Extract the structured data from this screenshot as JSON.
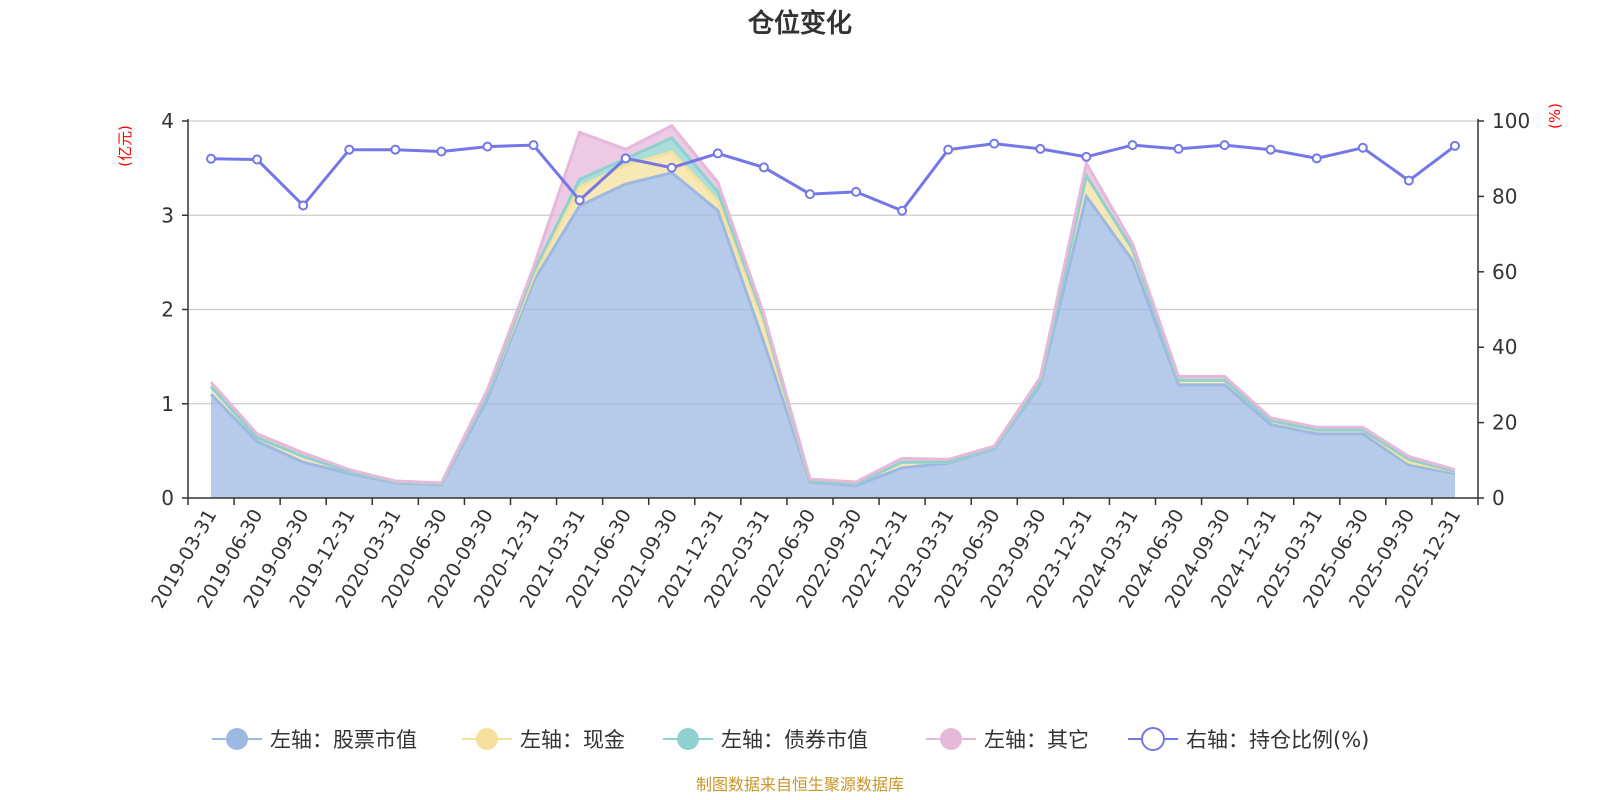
{
  "chart_data": {
    "type": "area",
    "title": "仓位变化",
    "left_axis_unit": "(亿元)",
    "right_axis_unit": "(%)",
    "left_axis": {
      "min": 0,
      "max": 4,
      "ticks": [
        "0",
        "1",
        "2",
        "3",
        "4"
      ]
    },
    "right_axis": {
      "min": 0,
      "max": 100,
      "ticks": [
        "0",
        "20",
        "40",
        "60",
        "80",
        "100"
      ]
    },
    "categories": [
      "2019-03-31",
      "2019-06-30",
      "2019-09-30",
      "2019-12-31",
      "2020-03-31",
      "2020-06-30",
      "2020-09-30",
      "2020-12-31",
      "2021-03-31",
      "2021-06-30",
      "2021-09-30",
      "2021-12-31",
      "2022-03-31",
      "2022-06-30",
      "2022-09-30",
      "2022-12-31",
      "2023-03-31",
      "2023-06-30",
      "2023-09-30",
      "2023-12-31",
      "2024-03-31",
      "2024-06-30",
      "2024-09-30",
      "2024-12-31",
      "2025-03-31",
      "2025-06-30",
      "2025-09-30",
      "2025-12-31"
    ],
    "series": [
      {
        "name": "左轴：股票市值",
        "axis": "left",
        "color": "#9db8e2",
        "values": [
          1.1,
          0.6,
          0.38,
          0.26,
          0.16,
          0.14,
          1.05,
          2.3,
          3.1,
          3.33,
          3.45,
          3.05,
          1.65,
          0.17,
          0.13,
          0.32,
          0.37,
          0.52,
          1.2,
          3.2,
          2.52,
          1.2,
          1.2,
          0.78,
          0.68,
          0.68,
          0.35,
          0.26
        ]
      },
      {
        "name": "左轴：现金",
        "axis": "left",
        "color": "#f5e09c",
        "values": [
          0.08,
          0.04,
          0.06,
          0.02,
          0.01,
          0.01,
          0.05,
          0.05,
          0.2,
          0.2,
          0.22,
          0.1,
          0.2,
          0.01,
          0.02,
          0.06,
          0.01,
          0.01,
          0.03,
          0.22,
          0.12,
          0.05,
          0.05,
          0.04,
          0.04,
          0.04,
          0.03,
          0.02
        ]
      },
      {
        "name": "左轴：债券市值",
        "axis": "left",
        "color": "#8fd1ce",
        "values": [
          0.0,
          0.0,
          0.0,
          0.0,
          0.0,
          0.0,
          0.0,
          0.05,
          0.08,
          0.07,
          0.15,
          0.1,
          0.05,
          0.0,
          0.0,
          0.0,
          0.0,
          0.0,
          0.0,
          0.0,
          0.0,
          0.0,
          0.0,
          0.0,
          0.0,
          0.0,
          0.03,
          0.0
        ]
      },
      {
        "name": "左轴：其它",
        "axis": "left",
        "color": "#e6b8d9",
        "values": [
          0.05,
          0.04,
          0.04,
          0.02,
          0.01,
          0.01,
          0.05,
          0.05,
          0.5,
          0.1,
          0.13,
          0.1,
          0.05,
          0.02,
          0.02,
          0.04,
          0.03,
          0.02,
          0.05,
          0.13,
          0.06,
          0.04,
          0.04,
          0.03,
          0.03,
          0.03,
          0.03,
          0.02
        ]
      },
      {
        "name": "右轴：持仓比例(%)",
        "axis": "right",
        "color": "#7478e6",
        "values": [
          90.0,
          89.8,
          77.6,
          92.4,
          92.4,
          91.9,
          93.2,
          93.6,
          79.0,
          90.1,
          87.6,
          91.4,
          87.7,
          80.6,
          81.2,
          76.2,
          92.4,
          94.0,
          92.6,
          90.5,
          93.6,
          92.6,
          93.6,
          92.4,
          90.1,
          92.9,
          84.2,
          93.4
        ]
      }
    ],
    "legend_position": "bottom",
    "grid": true
  },
  "source_note": "制图数据来自恒生聚源数据库"
}
